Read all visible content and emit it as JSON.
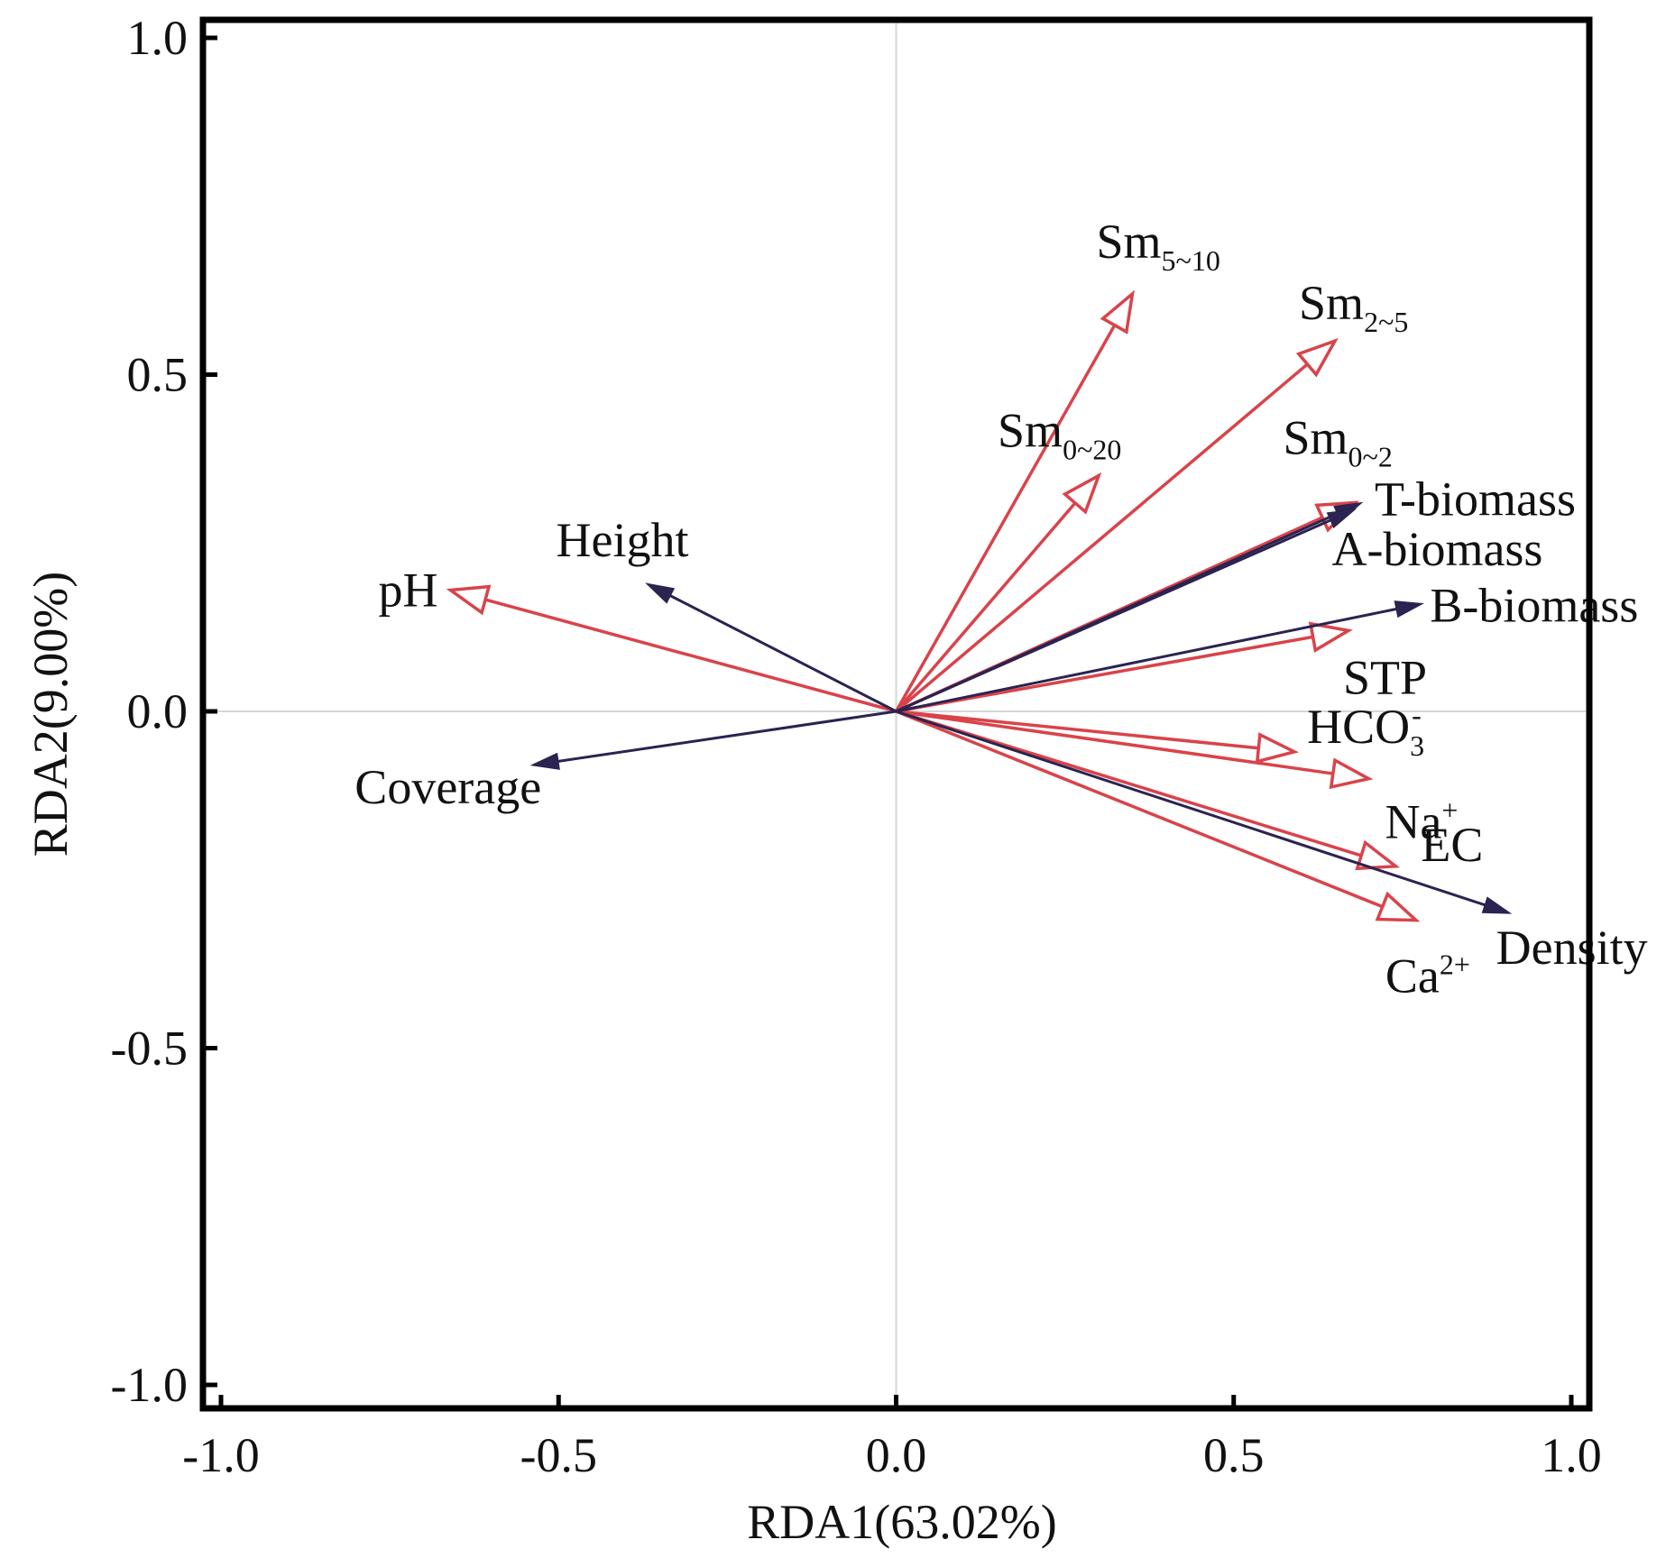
{
  "chart_data": {
    "type": "scatter",
    "subtype": "rda-biplot",
    "xlabel": "RDA1(63.02%)",
    "ylabel": "RDA2(9.00%)",
    "xlim": [
      -1.0,
      1.0
    ],
    "ylim": [
      -1.0,
      1.0
    ],
    "xticks": [
      "-1.0",
      "-0.5",
      "0.0",
      "0.5",
      "1.0"
    ],
    "yticks": [
      "-1.0",
      "-0.5",
      "0.0",
      "0.5",
      "1.0"
    ],
    "zero_lines": true,
    "colors": {
      "response": "#2b2350",
      "explanatory": "#d9434a"
    },
    "vectors": [
      {
        "name": "Sm5~10",
        "label": "Sm",
        "sub": "5~10",
        "x": 0.35,
        "y": 0.62,
        "group": "explanatory"
      },
      {
        "name": "Sm2~5",
        "label": "Sm",
        "sub": "2~5",
        "x": 0.65,
        "y": 0.55,
        "group": "explanatory"
      },
      {
        "name": "Sm0~20",
        "label": "Sm",
        "sub": "0~20",
        "x": 0.3,
        "y": 0.35,
        "group": "explanatory"
      },
      {
        "name": "Sm0~2",
        "label": "Sm",
        "sub": "0~2",
        "x": 0.68,
        "y": 0.31,
        "group": "explanatory"
      },
      {
        "name": "T-biomass",
        "label": "T-biomass",
        "sub": "",
        "x": 0.69,
        "y": 0.31,
        "group": "response"
      },
      {
        "name": "A-biomass",
        "label": "A-biomass",
        "sub": "",
        "x": 0.68,
        "y": 0.3,
        "group": "response"
      },
      {
        "name": "B-biomass",
        "label": "B-biomass",
        "sub": "",
        "x": 0.78,
        "y": 0.16,
        "group": "response"
      },
      {
        "name": "STP",
        "label": "STP",
        "sub": "",
        "x": 0.67,
        "y": 0.12,
        "group": "explanatory"
      },
      {
        "name": "HCO3-",
        "label": "HCO",
        "sub": "3",
        "sup": "-",
        "x": 0.59,
        "y": -0.06,
        "group": "explanatory"
      },
      {
        "name": "Na+",
        "label": "Na",
        "sub": "",
        "sup": "+",
        "x": 0.7,
        "y": -0.1,
        "group": "explanatory"
      },
      {
        "name": "EC",
        "label": "EC",
        "sub": "",
        "x": 0.74,
        "y": -0.23,
        "group": "explanatory"
      },
      {
        "name": "Density",
        "label": "Density",
        "sub": "",
        "x": 0.91,
        "y": -0.3,
        "group": "response"
      },
      {
        "name": "Ca2+",
        "label": "Ca",
        "sub": "",
        "sup": "2+",
        "x": 0.77,
        "y": -0.31,
        "group": "explanatory"
      },
      {
        "name": "pH",
        "label": "pH",
        "sub": "",
        "x": -0.66,
        "y": 0.18,
        "group": "explanatory"
      },
      {
        "name": "Height",
        "label": "Height",
        "sub": "",
        "x": -0.37,
        "y": 0.19,
        "group": "response"
      },
      {
        "name": "Coverage",
        "label": "Coverage",
        "sub": "",
        "x": -0.54,
        "y": -0.08,
        "group": "response"
      }
    ]
  }
}
